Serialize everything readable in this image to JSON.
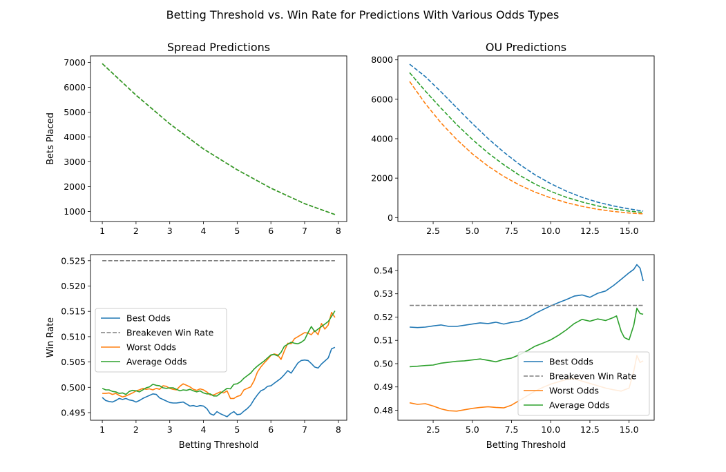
{
  "figure": {
    "title": "Betting Threshold vs. Win Rate for Predictions With Various Odds Types"
  },
  "colors": {
    "best": "#1f77b4",
    "worst": "#ff7f0e",
    "average": "#2ca02c",
    "breakeven": "#7f7f7f"
  },
  "chart_data": [
    {
      "id": "spread_bets",
      "type": "line",
      "title": "Spread Predictions",
      "xlabel": "",
      "ylabel": "Bets Placed",
      "xlim": [
        0.65,
        8.25
      ],
      "ylim": [
        600,
        7260
      ],
      "xticks": [
        1,
        2,
        3,
        4,
        5,
        6,
        7,
        8
      ],
      "xtick_labels": [
        "1",
        "2",
        "3",
        "4",
        "5",
        "6",
        "7",
        "8"
      ],
      "yticks": [
        1000,
        2000,
        3000,
        4000,
        5000,
        6000,
        7000
      ],
      "ytick_labels": [
        "1000",
        "2000",
        "3000",
        "4000",
        "5000",
        "6000",
        "7000"
      ],
      "legend": null,
      "series": [
        {
          "key": "best",
          "style": "dashed",
          "x": [
            1,
            2,
            3,
            4,
            5,
            6,
            7,
            7.9
          ],
          "y": [
            6950,
            5680,
            4530,
            3520,
            2680,
            1940,
            1320,
            880
          ]
        },
        {
          "key": "worst",
          "style": "dashed",
          "x": [
            1,
            2,
            3,
            4,
            5,
            6,
            7,
            7.9
          ],
          "y": [
            6950,
            5680,
            4530,
            3520,
            2680,
            1940,
            1320,
            880
          ]
        },
        {
          "key": "average",
          "style": "dashed",
          "x": [
            1,
            2,
            3,
            4,
            5,
            6,
            7,
            7.9
          ],
          "y": [
            6950,
            5680,
            4530,
            3520,
            2680,
            1940,
            1320,
            880
          ]
        }
      ]
    },
    {
      "id": "ou_bets",
      "type": "line",
      "title": "OU Predictions",
      "xlabel": "",
      "ylabel": "",
      "xlim": [
        0.25,
        16.6
      ],
      "ylim": [
        -200,
        8200
      ],
      "xticks": [
        2.5,
        5,
        7.5,
        10,
        12.5,
        15
      ],
      "xtick_labels": [
        "2.5",
        "5.0",
        "7.5",
        "10.0",
        "12.5",
        "15.0"
      ],
      "yticks": [
        0,
        2000,
        4000,
        6000,
        8000
      ],
      "ytick_labels": [
        "0",
        "2000",
        "4000",
        "6000",
        "8000"
      ],
      "legend": null,
      "series": [
        {
          "key": "best",
          "style": "dashed",
          "x": [
            1,
            2,
            3,
            4,
            5,
            6,
            7,
            8,
            9,
            10,
            11,
            12,
            13,
            14,
            15,
            15.9
          ],
          "y": [
            7780,
            7150,
            6380,
            5570,
            4770,
            4010,
            3320,
            2700,
            2170,
            1720,
            1340,
            1030,
            780,
            590,
            440,
            330
          ]
        },
        {
          "key": "worst",
          "style": "dashed",
          "x": [
            1,
            2,
            3,
            4,
            5,
            6,
            7,
            8,
            9,
            10,
            11,
            12,
            13,
            14,
            15,
            15.9
          ],
          "y": [
            6900,
            5780,
            4800,
            3960,
            3230,
            2610,
            2090,
            1650,
            1290,
            1000,
            760,
            570,
            420,
            310,
            230,
            190
          ]
        },
        {
          "key": "average",
          "style": "dashed",
          "x": [
            1,
            2,
            3,
            4,
            5,
            6,
            7,
            8,
            9,
            10,
            11,
            12,
            13,
            14,
            15,
            15.9
          ],
          "y": [
            7350,
            6420,
            5550,
            4720,
            3960,
            3280,
            2680,
            2150,
            1700,
            1330,
            1030,
            790,
            590,
            440,
            330,
            260
          ]
        }
      ]
    },
    {
      "id": "spread_winrate",
      "type": "line",
      "title": "",
      "xlabel": "Betting Threshold",
      "ylabel": "Win Rate",
      "xlim": [
        0.65,
        8.25
      ],
      "ylim": [
        0.4935,
        0.5262
      ],
      "xticks": [
        1,
        2,
        3,
        4,
        5,
        6,
        7,
        8
      ],
      "xtick_labels": [
        "1",
        "2",
        "3",
        "4",
        "5",
        "6",
        "7",
        "8"
      ],
      "yticks": [
        0.495,
        0.5,
        0.505,
        0.51,
        0.515,
        0.52,
        0.525
      ],
      "ytick_labels": [
        "0.495",
        "0.500",
        "0.505",
        "0.510",
        "0.515",
        "0.520",
        "0.525"
      ],
      "legend": "center-left",
      "series": [
        {
          "key": "best",
          "name": "Best Odds",
          "style": "solid",
          "x": [
            1,
            1.1,
            1.2,
            1.3,
            1.4,
            1.5,
            1.6,
            1.7,
            1.8,
            1.9,
            2,
            2.1,
            2.2,
            2.3,
            2.4,
            2.5,
            2.6,
            2.7,
            2.8,
            2.9,
            3,
            3.1,
            3.2,
            3.3,
            3.4,
            3.5,
            3.6,
            3.7,
            3.8,
            3.9,
            4,
            4.1,
            4.2,
            4.3,
            4.4,
            4.5,
            4.6,
            4.7,
            4.8,
            4.9,
            5,
            5.1,
            5.2,
            5.3,
            5.4,
            5.5,
            5.6,
            5.7,
            5.8,
            5.9,
            6,
            6.1,
            6.2,
            6.3,
            6.4,
            6.5,
            6.6,
            6.7,
            6.8,
            6.9,
            7,
            7.1,
            7.2,
            7.3,
            7.4,
            7.5,
            7.6,
            7.7,
            7.8,
            7.9
          ],
          "y": [
            0.498,
            0.4974,
            0.4972,
            0.4971,
            0.4974,
            0.4978,
            0.4976,
            0.4978,
            0.4975,
            0.4974,
            0.4971,
            0.4974,
            0.4978,
            0.4981,
            0.4984,
            0.4987,
            0.4986,
            0.4979,
            0.4976,
            0.4973,
            0.497,
            0.4969,
            0.4969,
            0.497,
            0.4971,
            0.4967,
            0.4963,
            0.4964,
            0.4962,
            0.4964,
            0.4963,
            0.4958,
            0.4948,
            0.4945,
            0.4952,
            0.4948,
            0.4945,
            0.4942,
            0.4948,
            0.4952,
            0.4946,
            0.4947,
            0.4953,
            0.4958,
            0.4965,
            0.4976,
            0.4985,
            0.4993,
            0.4996,
            0.5002,
            0.5003,
            0.5008,
            0.5013,
            0.5018,
            0.5025,
            0.5033,
            0.5028,
            0.5038,
            0.5048,
            0.5053,
            0.5054,
            0.5053,
            0.5047,
            0.504,
            0.5038,
            0.5046,
            0.5052,
            0.5058,
            0.5076,
            0.5079
          ]
        },
        {
          "key": "breakeven",
          "name": "Breakeven Win Rate",
          "style": "dashed",
          "x": [
            1,
            7.9
          ],
          "y": [
            0.525,
            0.525
          ]
        },
        {
          "key": "worst",
          "name": "Worst Odds",
          "style": "solid",
          "x": [
            1,
            1.1,
            1.2,
            1.3,
            1.4,
            1.5,
            1.6,
            1.7,
            1.8,
            1.9,
            2,
            2.1,
            2.2,
            2.3,
            2.4,
            2.5,
            2.6,
            2.7,
            2.8,
            2.9,
            3,
            3.1,
            3.2,
            3.3,
            3.4,
            3.5,
            3.6,
            3.7,
            3.8,
            3.9,
            4,
            4.1,
            4.2,
            4.3,
            4.4,
            4.5,
            4.6,
            4.7,
            4.8,
            4.9,
            5,
            5.1,
            5.2,
            5.3,
            5.4,
            5.5,
            5.6,
            5.7,
            5.8,
            5.9,
            6,
            6.1,
            6.2,
            6.3,
            6.4,
            6.5,
            6.6,
            6.7,
            6.8,
            6.9,
            7,
            7.1,
            7.2,
            7.3,
            7.4,
            7.5,
            7.6,
            7.7,
            7.8,
            7.9
          ],
          "y": [
            0.4988,
            0.4988,
            0.4989,
            0.4986,
            0.4988,
            0.4984,
            0.4981,
            0.4983,
            0.4986,
            0.4989,
            0.4993,
            0.4995,
            0.4998,
            0.4996,
            0.4997,
            0.4995,
            0.4998,
            0.4996,
            0.5003,
            0.5002,
            0.4998,
            0.4996,
            0.4995,
            0.5002,
            0.5007,
            0.5004,
            0.5001,
            0.4996,
            0.4994,
            0.4997,
            0.4995,
            0.4991,
            0.4985,
            0.4985,
            0.4988,
            0.4991,
            0.4989,
            0.4993,
            0.4978,
            0.4978,
            0.4982,
            0.4984,
            0.4995,
            0.4998,
            0.5001,
            0.5013,
            0.503,
            0.504,
            0.5048,
            0.5055,
            0.5063,
            0.5066,
            0.5064,
            0.5055,
            0.5072,
            0.5087,
            0.5086,
            0.5096,
            0.51,
            0.5104,
            0.5108,
            0.5107,
            0.5104,
            0.5112,
            0.5104,
            0.5126,
            0.5115,
            0.5123,
            0.5148,
            0.5138
          ]
        },
        {
          "key": "average",
          "name": "Average Odds",
          "style": "solid",
          "x": [
            1,
            1.1,
            1.2,
            1.3,
            1.4,
            1.5,
            1.6,
            1.7,
            1.8,
            1.9,
            2,
            2.1,
            2.2,
            2.3,
            2.4,
            2.5,
            2.6,
            2.7,
            2.8,
            2.9,
            3,
            3.1,
            3.2,
            3.3,
            3.4,
            3.5,
            3.6,
            3.7,
            3.8,
            3.9,
            4,
            4.1,
            4.2,
            4.3,
            4.4,
            4.5,
            4.6,
            4.7,
            4.8,
            4.9,
            5,
            5.1,
            5.2,
            5.3,
            5.4,
            5.5,
            5.6,
            5.7,
            5.8,
            5.9,
            6,
            6.1,
            6.2,
            6.3,
            6.4,
            6.5,
            6.6,
            6.7,
            6.8,
            6.9,
            7,
            7.1,
            7.2,
            7.3,
            7.4,
            7.5,
            7.6,
            7.7,
            7.8,
            7.9
          ],
          "y": [
            0.4998,
            0.4995,
            0.4995,
            0.4992,
            0.4991,
            0.4988,
            0.4989,
            0.4986,
            0.4992,
            0.4994,
            0.4993,
            0.4991,
            0.4995,
            0.4999,
            0.5001,
            0.5006,
            0.5004,
            0.5003,
            0.4999,
            0.4998,
            0.4999,
            0.4999,
            0.4996,
            0.4993,
            0.4995,
            0.4994,
            0.4996,
            0.4993,
            0.4991,
            0.4993,
            0.4989,
            0.4987,
            0.4987,
            0.4983,
            0.4983,
            0.4988,
            0.4993,
            0.4998,
            0.4997,
            0.5006,
            0.5007,
            0.5011,
            0.5018,
            0.5023,
            0.5028,
            0.5036,
            0.5042,
            0.5047,
            0.5052,
            0.5058,
            0.5064,
            0.5065,
            0.5062,
            0.5069,
            0.5081,
            0.5085,
            0.5089,
            0.5087,
            0.5086,
            0.5089,
            0.5094,
            0.5108,
            0.512,
            0.511,
            0.5115,
            0.512,
            0.5125,
            0.513,
            0.514,
            0.5151
          ]
        }
      ]
    },
    {
      "id": "ou_winrate",
      "type": "line",
      "title": "",
      "xlabel": "Betting Threshold",
      "ylabel": "",
      "xlim": [
        0.25,
        16.6
      ],
      "ylim": [
        0.4757,
        0.5468
      ],
      "xticks": [
        2.5,
        5,
        7.5,
        10,
        12.5,
        15
      ],
      "xtick_labels": [
        "2.5",
        "5.0",
        "7.5",
        "10.0",
        "12.5",
        "15.0"
      ],
      "yticks": [
        0.48,
        0.49,
        0.5,
        0.51,
        0.52,
        0.53,
        0.54
      ],
      "ytick_labels": [
        "0.48",
        "0.49",
        "0.50",
        "0.51",
        "0.52",
        "0.53",
        "0.54"
      ],
      "legend": "lower-right",
      "series": [
        {
          "key": "best",
          "name": "Best Odds",
          "style": "solid",
          "x": [
            1,
            1.5,
            2,
            2.5,
            3,
            3.5,
            4,
            4.5,
            5,
            5.5,
            6,
            6.5,
            7,
            7.5,
            8,
            8.5,
            9,
            9.5,
            10,
            10.5,
            11,
            11.5,
            12,
            12.5,
            13,
            13.5,
            14,
            14.5,
            15,
            15.3,
            15.5,
            15.7,
            15.9
          ],
          "y": [
            0.5157,
            0.5155,
            0.5157,
            0.5162,
            0.5166,
            0.516,
            0.516,
            0.5165,
            0.517,
            0.5175,
            0.5172,
            0.5178,
            0.517,
            0.5177,
            0.5182,
            0.5195,
            0.5215,
            0.5232,
            0.5248,
            0.5262,
            0.5275,
            0.529,
            0.5295,
            0.5285,
            0.5302,
            0.5312,
            0.5335,
            0.5362,
            0.539,
            0.5405,
            0.5425,
            0.541,
            0.5355
          ]
        },
        {
          "key": "breakeven",
          "name": "Breakeven Win Rate",
          "style": "dashed",
          "x": [
            1,
            15.9
          ],
          "y": [
            0.525,
            0.525
          ]
        },
        {
          "key": "worst",
          "name": "Worst Odds",
          "style": "solid",
          "x": [
            1,
            1.5,
            2,
            2.5,
            3,
            3.5,
            4,
            4.5,
            5,
            5.5,
            6,
            6.5,
            7,
            7.5,
            8,
            8.5,
            9,
            9.5,
            10,
            10.5,
            11,
            11.5,
            12,
            12.5,
            13,
            13.5,
            14,
            14.5,
            15,
            15.3,
            15.5,
            15.7,
            15.9
          ],
          "y": [
            0.4832,
            0.4825,
            0.4828,
            0.4818,
            0.4806,
            0.4798,
            0.4796,
            0.4802,
            0.4808,
            0.4812,
            0.4815,
            0.4812,
            0.481,
            0.4822,
            0.4842,
            0.4862,
            0.4882,
            0.4898,
            0.4912,
            0.4922,
            0.4932,
            0.4935,
            0.4925,
            0.4915,
            0.4905,
            0.4895,
            0.4888,
            0.4882,
            0.4895,
            0.4968,
            0.5035,
            0.5005,
            0.5012
          ]
        },
        {
          "key": "average",
          "name": "Average Odds",
          "style": "solid",
          "x": [
            1,
            1.5,
            2,
            2.5,
            3,
            3.5,
            4,
            4.5,
            5,
            5.5,
            6,
            6.5,
            7,
            7.5,
            8,
            8.5,
            9,
            9.5,
            10,
            10.5,
            11,
            11.5,
            12,
            12.5,
            13,
            13.5,
            14,
            14.2,
            14.5,
            14.7,
            15,
            15.3,
            15.5,
            15.7,
            15.9
          ],
          "y": [
            0.4987,
            0.4989,
            0.4992,
            0.4994,
            0.5002,
            0.5006,
            0.501,
            0.5012,
            0.5016,
            0.502,
            0.5014,
            0.5008,
            0.5018,
            0.5024,
            0.5038,
            0.5055,
            0.5075,
            0.5088,
            0.5102,
            0.5122,
            0.5145,
            0.5172,
            0.519,
            0.5182,
            0.5192,
            0.5185,
            0.5198,
            0.5205,
            0.5138,
            0.5112,
            0.5102,
            0.5165,
            0.5238,
            0.5215,
            0.5212
          ]
        }
      ]
    }
  ]
}
